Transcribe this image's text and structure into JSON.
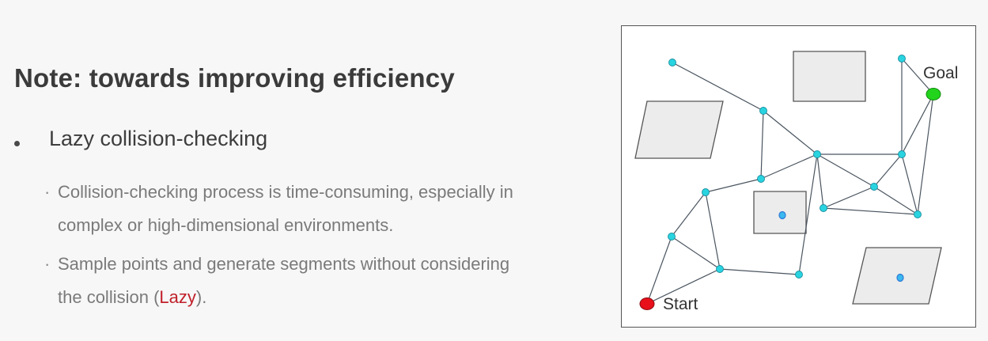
{
  "slide": {
    "title": "Note: towards improving efficiency",
    "bullet": "Lazy collision-checking",
    "subpoints": [
      {
        "line1": "Collision-checking process is time-consuming, especially in",
        "line2": "complex  or high-dimensional environments."
      },
      {
        "line1": "Sample points and generate segments without considering",
        "line2_before": "the collision (",
        "line2_highlight": "Lazy",
        "line2_after": ")."
      }
    ]
  },
  "diagram": {
    "start_label": "Start",
    "goal_label": "Goal",
    "colors": {
      "node": "#29d4e0",
      "start": "#e8101a",
      "goal": "#22d41c",
      "obstacle_fill": "#ececec",
      "obstacle_stroke": "#555555",
      "edge": "#4a5560",
      "obstacle_dot": "#2f7bd6"
    }
  }
}
